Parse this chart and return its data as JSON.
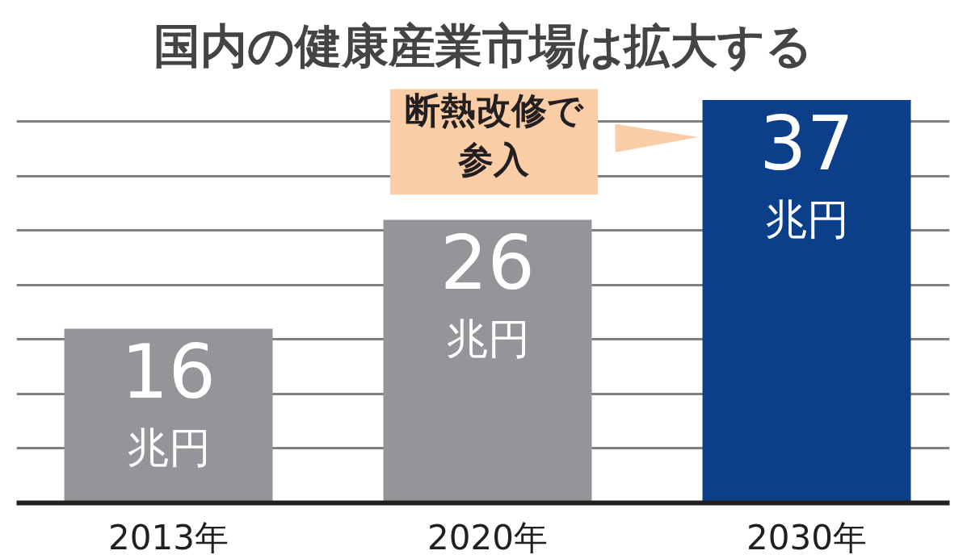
{
  "chart_data": {
    "type": "bar",
    "title": "国内の健康産業市場は拡大する",
    "categories": [
      "2013年",
      "2020年",
      "2030年"
    ],
    "values": [
      16,
      26,
      37
    ],
    "colors": [
      "#939598",
      "#939598",
      "#0b3f8a"
    ],
    "value_labels": [
      "16\n兆円",
      "26\n兆円",
      "37\n兆円"
    ],
    "annotations": [
      "断熱改修で参入"
    ],
    "yticks": [
      {
        "value": 5,
        "label": null
      },
      {
        "value": 10,
        "label": null
      },
      {
        "value": 15,
        "label": null
      },
      {
        "value": 20,
        "label": null
      },
      {
        "value": 25,
        "label": null
      },
      {
        "value": 30,
        "label": null
      },
      {
        "value": 35,
        "label": null
      }
    ],
    "grid": "y",
    "tick_labels": "x"
  }
}
